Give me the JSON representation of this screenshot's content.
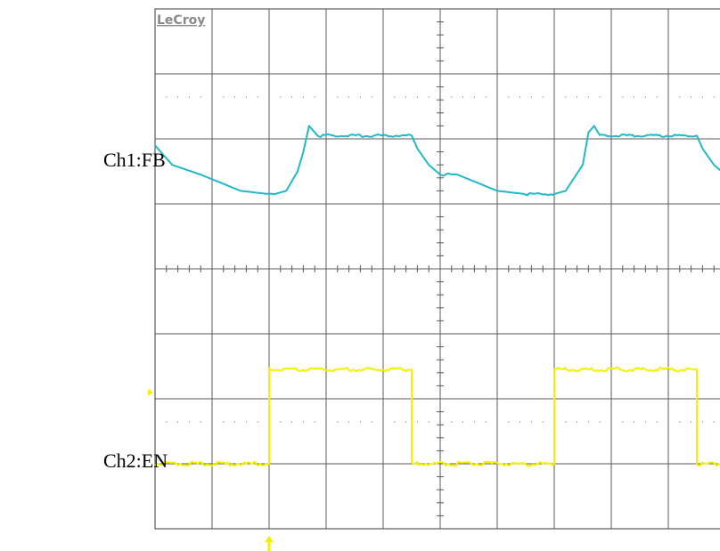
{
  "brand": "LeCroy",
  "colors": {
    "background": "#ffffff",
    "grid": "#595959",
    "ch1": "#22b8c8",
    "ch2": "#f4f000",
    "marker": "#f4f000"
  },
  "chart_data": {
    "type": "line",
    "grid": {
      "divisions_x": 10,
      "divisions_y": 8,
      "grid_on": true
    },
    "xlim": [
      0,
      10
    ],
    "ylim": [
      -4,
      4
    ],
    "series": [
      {
        "name": "Ch1:FB",
        "color": "#22b8c8",
        "x": [
          0,
          0.3,
          0.8,
          1.5,
          2.0,
          2.1,
          2.3,
          2.5,
          2.6,
          2.7,
          2.75,
          2.85,
          3.0,
          4.5,
          4.6,
          4.8,
          5.0,
          5.3,
          6.0,
          6.5,
          7.0,
          7.2,
          7.5,
          7.6,
          7.7,
          7.8,
          8.0,
          9.5,
          9.6,
          9.8,
          10.0
        ],
        "y": [
          1.9,
          1.6,
          1.45,
          1.2,
          1.15,
          1.15,
          1.2,
          1.5,
          1.8,
          2.2,
          2.15,
          2.05,
          2.05,
          2.05,
          1.85,
          1.6,
          1.45,
          1.45,
          1.2,
          1.15,
          1.15,
          1.2,
          1.6,
          2.1,
          2.2,
          2.05,
          2.05,
          2.05,
          1.85,
          1.6,
          1.45
        ]
      },
      {
        "name": "Ch2:EN",
        "color": "#f4f000",
        "x": [
          0,
          2.0,
          2.0,
          4.5,
          4.5,
          7.0,
          7.0,
          9.5,
          9.5,
          10.0
        ],
        "y": [
          -3.0,
          -3.0,
          -1.55,
          -1.55,
          -3.0,
          -3.0,
          -1.55,
          -1.55,
          -3.0,
          -3.0
        ]
      }
    ],
    "channel_labels": [
      "Ch1:FB",
      "Ch2:EN"
    ],
    "trigger_marker": {
      "x": 2.0
    },
    "ch2_ground_marker": {
      "y": -1.9
    }
  }
}
